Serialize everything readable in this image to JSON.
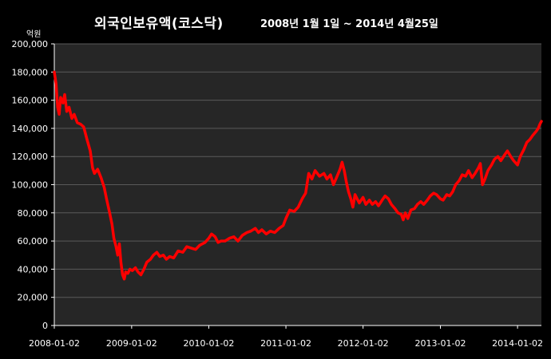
{
  "header": {
    "title": "외국인보유액(코스닥)",
    "subtitle": "2008년 1월 1일 ~ 2014년 4월25일",
    "unit": "억원"
  },
  "colors": {
    "background": "#000000",
    "plot_background": "#262626",
    "series": "#ff0000",
    "grid": "#5a5a5a",
    "text": "#ffffff"
  },
  "chart_data": {
    "type": "line",
    "title": "외국인보유액(코스닥)",
    "subtitle": "2008년 1월 1일 ~ 2014년 4월25일",
    "ylabel": "억원",
    "ylim": [
      0,
      200000
    ],
    "xlim": [
      "2008-01-02",
      "2014-04-25"
    ],
    "grid": true,
    "yticks": [
      0,
      20000,
      40000,
      60000,
      80000,
      100000,
      120000,
      140000,
      160000,
      180000,
      200000
    ],
    "ytick_labels": [
      "0",
      "20,000",
      "40,000",
      "60,000",
      "80,000",
      "100,000",
      "120,000",
      "140,000",
      "160,000",
      "180,000",
      "200,000"
    ],
    "xtick_labels": [
      "2008-01-02",
      "2009-01-02",
      "2010-01-02",
      "2011-01-02",
      "2012-01-02",
      "2013-01-02",
      "2014-01-02"
    ],
    "series": [
      {
        "points": [
          [
            "2008-01-02",
            180000
          ],
          [
            "2008-01-10",
            172000
          ],
          [
            "2008-01-18",
            155000
          ],
          [
            "2008-01-25",
            150000
          ],
          [
            "2008-02-01",
            162000
          ],
          [
            "2008-02-12",
            158000
          ],
          [
            "2008-02-20",
            164000
          ],
          [
            "2008-03-01",
            152000
          ],
          [
            "2008-03-12",
            155000
          ],
          [
            "2008-03-25",
            147000
          ],
          [
            "2008-04-05",
            150000
          ],
          [
            "2008-04-20",
            144000
          ],
          [
            "2008-05-05",
            143000
          ],
          [
            "2008-05-20",
            141000
          ],
          [
            "2008-06-05",
            132000
          ],
          [
            "2008-06-20",
            124000
          ],
          [
            "2008-07-01",
            112000
          ],
          [
            "2008-07-10",
            108000
          ],
          [
            "2008-07-25",
            111000
          ],
          [
            "2008-08-10",
            105000
          ],
          [
            "2008-08-25",
            98000
          ],
          [
            "2008-09-05",
            90000
          ],
          [
            "2008-09-20",
            80000
          ],
          [
            "2008-10-01",
            72000
          ],
          [
            "2008-10-10",
            62000
          ],
          [
            "2008-10-20",
            56000
          ],
          [
            "2008-10-28",
            50000
          ],
          [
            "2008-11-05",
            58000
          ],
          [
            "2008-11-12",
            45000
          ],
          [
            "2008-11-20",
            36000
          ],
          [
            "2008-11-28",
            33000
          ],
          [
            "2008-12-05",
            38000
          ],
          [
            "2008-12-15",
            37000
          ],
          [
            "2008-12-25",
            40000
          ],
          [
            "2009-01-05",
            39000
          ],
          [
            "2009-01-20",
            41000
          ],
          [
            "2009-02-01",
            38000
          ],
          [
            "2009-02-15",
            36000
          ],
          [
            "2009-03-01",
            40000
          ],
          [
            "2009-03-15",
            45000
          ],
          [
            "2009-04-01",
            47000
          ],
          [
            "2009-04-15",
            50000
          ],
          [
            "2009-05-01",
            52000
          ],
          [
            "2009-05-15",
            49000
          ],
          [
            "2009-06-01",
            50000
          ],
          [
            "2009-06-15",
            47000
          ],
          [
            "2009-07-01",
            49000
          ],
          [
            "2009-07-20",
            48000
          ],
          [
            "2009-08-10",
            53000
          ],
          [
            "2009-09-01",
            52000
          ],
          [
            "2009-09-20",
            56000
          ],
          [
            "2009-10-10",
            55000
          ],
          [
            "2009-11-01",
            54000
          ],
          [
            "2009-11-20",
            57000
          ],
          [
            "2009-12-15",
            59000
          ],
          [
            "2010-01-02",
            62000
          ],
          [
            "2010-01-15",
            65000
          ],
          [
            "2010-02-01",
            63000
          ],
          [
            "2010-02-15",
            59000
          ],
          [
            "2010-03-01",
            60000
          ],
          [
            "2010-03-20",
            60000
          ],
          [
            "2010-04-10",
            62000
          ],
          [
            "2010-05-01",
            63000
          ],
          [
            "2010-05-20",
            60000
          ],
          [
            "2010-06-10",
            64000
          ],
          [
            "2010-07-01",
            66000
          ],
          [
            "2010-07-20",
            67000
          ],
          [
            "2010-08-10",
            69000
          ],
          [
            "2010-08-25",
            66000
          ],
          [
            "2010-09-10",
            68000
          ],
          [
            "2010-10-01",
            65000
          ],
          [
            "2010-10-20",
            67000
          ],
          [
            "2010-11-10",
            66000
          ],
          [
            "2010-12-01",
            69000
          ],
          [
            "2010-12-20",
            71000
          ],
          [
            "2011-01-02",
            76000
          ],
          [
            "2011-01-20",
            82000
          ],
          [
            "2011-02-10",
            81000
          ],
          [
            "2011-03-01",
            84000
          ],
          [
            "2011-03-20",
            90000
          ],
          [
            "2011-04-05",
            94000
          ],
          [
            "2011-04-20",
            108000
          ],
          [
            "2011-05-05",
            104000
          ],
          [
            "2011-05-20",
            110000
          ],
          [
            "2011-06-10",
            106000
          ],
          [
            "2011-07-01",
            108000
          ],
          [
            "2011-07-15",
            104000
          ],
          [
            "2011-08-01",
            107000
          ],
          [
            "2011-08-15",
            100000
          ],
          [
            "2011-09-01",
            106000
          ],
          [
            "2011-09-15",
            111000
          ],
          [
            "2011-09-25",
            116000
          ],
          [
            "2011-10-05",
            110000
          ],
          [
            "2011-10-15",
            102000
          ],
          [
            "2011-10-25",
            95000
          ],
          [
            "2011-11-05",
            90000
          ],
          [
            "2011-11-15",
            84000
          ],
          [
            "2011-11-25",
            93000
          ],
          [
            "2011-12-05",
            90000
          ],
          [
            "2011-12-15",
            87000
          ],
          [
            "2012-01-02",
            91000
          ],
          [
            "2012-01-15",
            86000
          ],
          [
            "2012-02-01",
            89000
          ],
          [
            "2012-02-15",
            86000
          ],
          [
            "2012-03-01",
            88000
          ],
          [
            "2012-03-15",
            85000
          ],
          [
            "2012-04-01",
            89000
          ],
          [
            "2012-04-15",
            92000
          ],
          [
            "2012-05-01",
            90000
          ],
          [
            "2012-05-15",
            86000
          ],
          [
            "2012-06-01",
            83000
          ],
          [
            "2012-06-15",
            80000
          ],
          [
            "2012-07-01",
            79000
          ],
          [
            "2012-07-10",
            75000
          ],
          [
            "2012-07-20",
            80000
          ],
          [
            "2012-08-01",
            76000
          ],
          [
            "2012-08-15",
            82000
          ],
          [
            "2012-09-01",
            83000
          ],
          [
            "2012-09-15",
            86000
          ],
          [
            "2012-10-01",
            88000
          ],
          [
            "2012-10-15",
            86000
          ],
          [
            "2012-11-01",
            89000
          ],
          [
            "2012-11-15",
            92000
          ],
          [
            "2012-12-01",
            94000
          ],
          [
            "2012-12-15",
            93000
          ],
          [
            "2013-01-02",
            90000
          ],
          [
            "2013-01-15",
            89000
          ],
          [
            "2013-02-01",
            93000
          ],
          [
            "2013-02-15",
            92000
          ],
          [
            "2013-03-01",
            95000
          ],
          [
            "2013-03-15",
            100000
          ],
          [
            "2013-04-01",
            103000
          ],
          [
            "2013-04-15",
            107000
          ],
          [
            "2013-05-01",
            106000
          ],
          [
            "2013-05-15",
            110000
          ],
          [
            "2013-06-01",
            105000
          ],
          [
            "2013-06-15",
            108000
          ],
          [
            "2013-07-01",
            112000
          ],
          [
            "2013-07-10",
            115000
          ],
          [
            "2013-07-20",
            100000
          ],
          [
            "2013-08-01",
            104000
          ],
          [
            "2013-08-15",
            110000
          ],
          [
            "2013-09-01",
            114000
          ],
          [
            "2013-09-15",
            118000
          ],
          [
            "2013-10-01",
            120000
          ],
          [
            "2013-10-15",
            117000
          ],
          [
            "2013-11-01",
            121000
          ],
          [
            "2013-11-15",
            124000
          ],
          [
            "2013-12-01",
            120000
          ],
          [
            "2013-12-15",
            117000
          ],
          [
            "2014-01-02",
            114000
          ],
          [
            "2014-01-15",
            120000
          ],
          [
            "2014-02-01",
            125000
          ],
          [
            "2014-02-15",
            130000
          ],
          [
            "2014-03-01",
            132000
          ],
          [
            "2014-03-15",
            135000
          ],
          [
            "2014-04-01",
            138000
          ],
          [
            "2014-04-10",
            140000
          ],
          [
            "2014-04-18",
            143000
          ],
          [
            "2014-04-25",
            145000
          ]
        ]
      }
    ]
  }
}
